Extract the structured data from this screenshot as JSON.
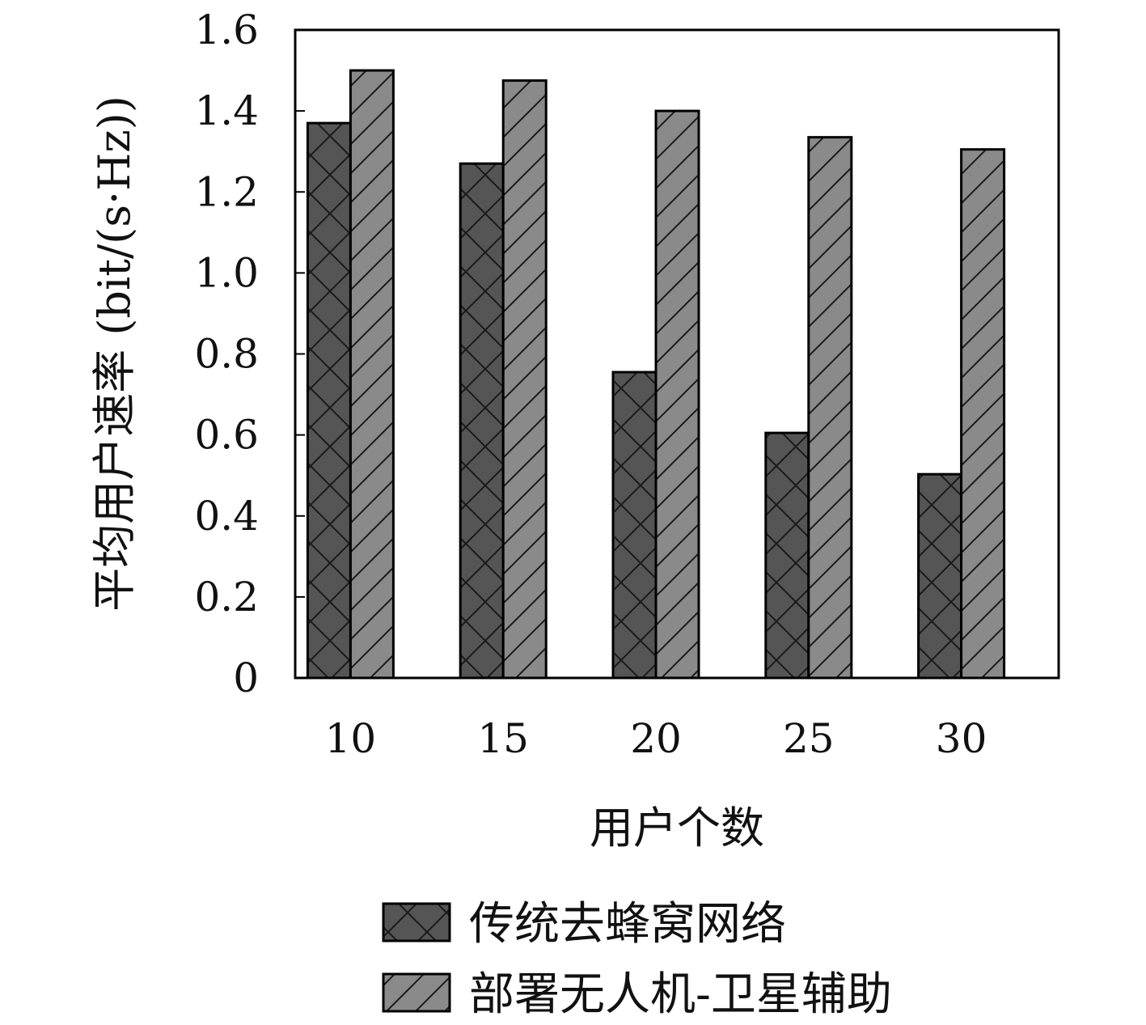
{
  "chart_data": {
    "type": "bar",
    "categories": [
      "10",
      "15",
      "20",
      "25",
      "30"
    ],
    "series": [
      {
        "name": "传统去蜂窝网络",
        "values": [
          1.37,
          1.27,
          0.755,
          0.605,
          0.503
        ],
        "color": "#555555",
        "pattern": "crosshatch"
      },
      {
        "name": "部署无人机-卫星辅助",
        "values": [
          1.5,
          1.475,
          1.4,
          1.335,
          1.305
        ],
        "color": "#8a8a8a",
        "pattern": "diagonal"
      }
    ],
    "xlabel": "用户个数",
    "ylabel": "平均用户速率 (bit/(s·Hz))",
    "ylim": [
      0,
      1.6
    ],
    "yticks": [
      "0",
      "0.2",
      "0.4",
      "0.6",
      "0.8",
      "1.0",
      "1.2",
      "1.4",
      "1.6"
    ],
    "legend_position": "bottom",
    "grid": false
  }
}
